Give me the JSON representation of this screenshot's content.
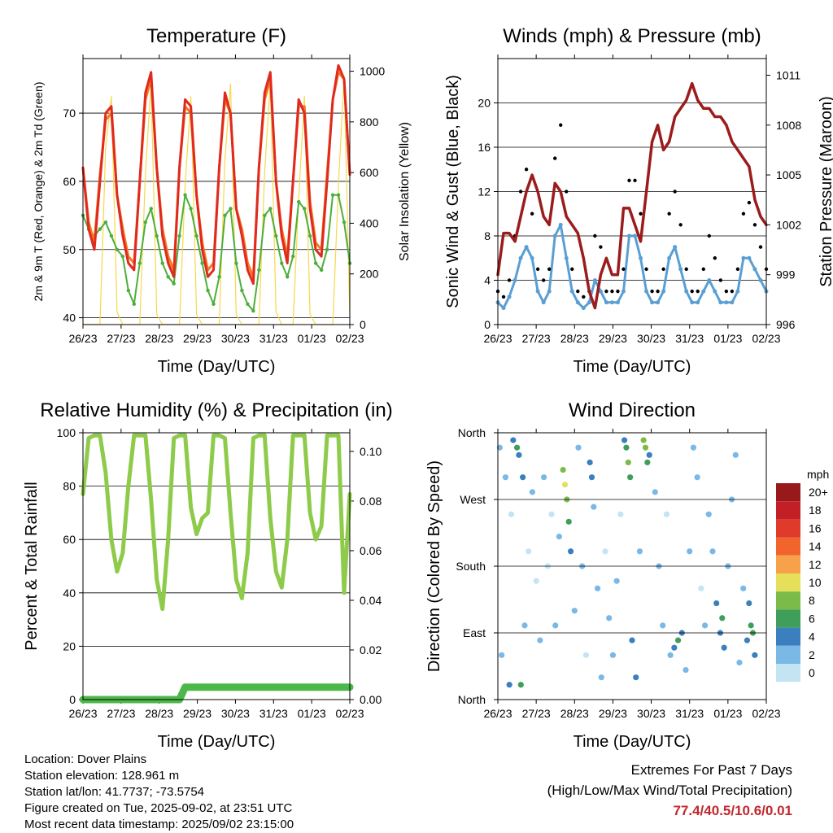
{
  "chart_data": [
    {
      "type": "line",
      "title": "Temperature (F)",
      "xlabel": "Time (Day/UTC)",
      "ylabel": "2m & 9m T (Red, Orange) & 2m Td (Green)",
      "y2label": "Solar Insolation (Yellow)",
      "x_ticks": [
        "26/23",
        "27/23",
        "28/23",
        "29/23",
        "30/23",
        "31/23",
        "01/23",
        "02/23"
      ],
      "ylim": [
        39,
        78
      ],
      "y_ticks": [
        40,
        50,
        60,
        70
      ],
      "y2lim": [
        0,
        1050
      ],
      "y2_ticks": [
        0,
        200,
        400,
        600,
        800,
        1000
      ],
      "series": [
        {
          "color": "#e02a1f",
          "values": [
            62,
            53,
            50,
            60,
            70,
            71,
            58,
            52,
            48,
            47,
            60,
            73,
            76,
            62,
            52,
            48,
            46,
            62,
            72,
            71,
            58,
            50,
            46,
            47,
            62,
            73,
            70,
            56,
            52,
            47,
            45,
            62,
            73,
            76,
            60,
            52,
            48,
            60,
            72,
            70,
            56,
            50,
            49,
            60,
            72,
            77,
            75,
            61
          ]
        },
        {
          "color": "#f47a20",
          "values": [
            62,
            54,
            51,
            61,
            69,
            70,
            58,
            53,
            49,
            48,
            60,
            72,
            75,
            62,
            53,
            49,
            47,
            62,
            71,
            70,
            58,
            51,
            47,
            48,
            62,
            72,
            70,
            56,
            53,
            48,
            46,
            62,
            72,
            75,
            60,
            53,
            49,
            60,
            71,
            71,
            57,
            51,
            50,
            61,
            72,
            76,
            75,
            61
          ]
        },
        {
          "color": "#4caf3a",
          "values": [
            55,
            53,
            52,
            53,
            54,
            52,
            50,
            49,
            44,
            42,
            48,
            54,
            56,
            52,
            48,
            46,
            45,
            52,
            58,
            56,
            52,
            48,
            44,
            42,
            46,
            55,
            56,
            48,
            44,
            42,
            41,
            47,
            55,
            56,
            52,
            48,
            46,
            49,
            57,
            56,
            52,
            48,
            47,
            50,
            58,
            58,
            54,
            48
          ]
        },
        {
          "color": "#f5d94a",
          "values": [
            0,
            0,
            0,
            0,
            700,
            900,
            50,
            0,
            0,
            0,
            0,
            600,
            950,
            40,
            0,
            0,
            0,
            0,
            550,
            900,
            40,
            0,
            0,
            0,
            0,
            650,
            950,
            40,
            0,
            0,
            0,
            0,
            600,
            960,
            50,
            0,
            0,
            0,
            500,
            900,
            40,
            0,
            0,
            0,
            0,
            550,
            980,
            30
          ]
        }
      ]
    },
    {
      "type": "scatter",
      "title": "Winds (mph) & Pressure (mb)",
      "xlabel": "Time (Day/UTC)",
      "ylabel": "Sonic Wind & Gust (Blue, Black)",
      "y2label": "Station Pressure (Maroon)",
      "x_ticks": [
        "26/23",
        "27/23",
        "28/23",
        "29/23",
        "30/23",
        "31/23",
        "01/23",
        "02/23"
      ],
      "ylim": [
        0,
        24
      ],
      "y_ticks": [
        0,
        4,
        8,
        12,
        16,
        20
      ],
      "y2lim": [
        996,
        1012
      ],
      "y2_ticks": [
        996,
        999,
        1002,
        1005,
        1008,
        1011
      ],
      "series": [
        {
          "color": "#5a9fd4",
          "values": [
            2,
            1.5,
            2.5,
            4,
            6,
            7,
            6,
            3,
            2,
            3,
            8,
            9,
            6,
            3,
            2,
            1.5,
            2,
            4,
            3,
            2,
            2,
            2,
            3,
            8,
            8,
            6,
            3,
            2,
            2,
            3,
            6,
            7,
            5,
            3,
            2,
            2,
            3,
            4,
            3,
            2,
            2,
            2,
            3,
            6,
            6,
            5,
            4,
            3
          ]
        },
        {
          "color": "#000000",
          "values": [
            3,
            2.5,
            4,
            8,
            12,
            14,
            10,
            5,
            4,
            5,
            15,
            18,
            12,
            5,
            3,
            2.5,
            3,
            8,
            7,
            3,
            3,
            3,
            5,
            13,
            13,
            10,
            5,
            3,
            3,
            5,
            10,
            12,
            9,
            5,
            3,
            3,
            5,
            8,
            6,
            4,
            3,
            3,
            5,
            10,
            11,
            9,
            7,
            5
          ]
        },
        {
          "color": "#9b1c1c",
          "values": [
            999,
            1001.5,
            1001.5,
            1001,
            1002.5,
            1004,
            1005,
            1004,
            1002.5,
            1002,
            1004.5,
            1004,
            1002.5,
            1002,
            1001.5,
            1000,
            998,
            997,
            999,
            1000,
            999,
            999,
            1003,
            1003,
            1002,
            1001,
            1004,
            1007,
            1008,
            1006.5,
            1007,
            1008.5,
            1009,
            1009.5,
            1010.5,
            1009.5,
            1009,
            1009,
            1008.5,
            1008.5,
            1008,
            1007,
            1006.5,
            1006,
            1005.5,
            1003.5,
            1002.5,
            1002
          ]
        }
      ]
    },
    {
      "type": "line",
      "title": "Relative Humidity (%) & Precipitation (in)",
      "xlabel": "Time (Day/UTC)",
      "ylabel": "Percent & Total Rainfall",
      "x_ticks": [
        "26/23",
        "27/23",
        "28/23",
        "29/23",
        "30/23",
        "31/23",
        "01/23",
        "02/23"
      ],
      "ylim": [
        0,
        100
      ],
      "y_ticks": [
        0,
        20,
        40,
        60,
        80,
        100
      ],
      "y2lim": [
        0,
        0.1075
      ],
      "y2_ticks": [
        "0.00",
        "0.02",
        "0.04",
        "0.06",
        "0.08",
        "0.10"
      ],
      "series": [
        {
          "color": "#8ecb4a",
          "values": [
            77,
            98,
            99,
            99,
            85,
            60,
            48,
            55,
            80,
            99,
            99,
            99,
            75,
            45,
            34,
            60,
            98,
            99,
            99,
            72,
            62,
            68,
            70,
            99,
            99,
            98,
            70,
            45,
            38,
            55,
            98,
            99,
            99,
            68,
            48,
            42,
            60,
            99,
            99,
            99,
            70,
            60,
            65,
            99,
            99,
            99,
            40,
            77
          ]
        },
        {
          "color": "#4cb84a",
          "values": [
            0,
            0,
            0,
            0,
            0,
            0,
            0,
            0,
            0,
            0,
            0,
            0,
            0,
            0,
            0,
            0,
            0,
            0,
            0.005,
            0.005,
            0.005,
            0.005,
            0.005,
            0.005,
            0.005,
            0.005,
            0.005,
            0.005,
            0.005,
            0.005,
            0.005,
            0.005,
            0.005,
            0.005,
            0.005,
            0.005,
            0.005,
            0.005,
            0.005,
            0.005,
            0.005,
            0.005,
            0.005,
            0.005,
            0.005,
            0.005,
            0.005,
            0.005
          ]
        }
      ]
    },
    {
      "type": "scatter",
      "title": "Wind Direction",
      "xlabel": "Time (Day/UTC)",
      "ylabel": "Direction (Colored By Speed)",
      "x_ticks": [
        "26/23",
        "27/23",
        "28/23",
        "29/23",
        "30/23",
        "31/23",
        "01/23",
        "02/23"
      ],
      "y_ticks": [
        "North",
        "East",
        "South",
        "West",
        "North"
      ],
      "ylim": [
        0,
        360
      ],
      "colorbar": {
        "title": "mph",
        "labels": [
          "20+",
          "18",
          "16",
          "14",
          "12",
          "10",
          "8",
          "6",
          "4",
          "2",
          "0"
        ],
        "colors": [
          "#98191a",
          "#c21f26",
          "#e03a2a",
          "#f1652c",
          "#f7a24a",
          "#e6df5a",
          "#7bbb4a",
          "#3f9f5a",
          "#3b7fbf",
          "#7ab8e6",
          "#c4e4f4"
        ]
      },
      "series": [
        {
          "values": [
            [
              0.05,
              340,
              2
            ],
            [
              0.1,
              60,
              3
            ],
            [
              0.2,
              300,
              2
            ],
            [
              0.3,
              20,
              4
            ],
            [
              0.35,
              250,
              1
            ],
            [
              0.4,
              350,
              5
            ],
            [
              0.5,
              340,
              6
            ],
            [
              0.55,
              330,
              5
            ],
            [
              0.6,
              20,
              7
            ],
            [
              0.65,
              300,
              4
            ],
            [
              0.7,
              100,
              2
            ],
            [
              0.8,
              200,
              1
            ],
            [
              0.9,
              280,
              2
            ],
            [
              1.0,
              160,
              1
            ],
            [
              1.1,
              80,
              3
            ],
            [
              1.2,
              300,
              2
            ],
            [
              1.3,
              180,
              1
            ],
            [
              1.4,
              250,
              1
            ],
            [
              1.5,
              100,
              2
            ],
            [
              1.6,
              220,
              2
            ],
            [
              1.7,
              310,
              8
            ],
            [
              1.75,
              290,
              10
            ],
            [
              1.8,
              270,
              8
            ],
            [
              1.85,
              240,
              6
            ],
            [
              1.9,
              200,
              4
            ],
            [
              2.0,
              120,
              2
            ],
            [
              2.1,
              340,
              3
            ],
            [
              2.2,
              180,
              2
            ],
            [
              2.3,
              60,
              1
            ],
            [
              2.4,
              320,
              5
            ],
            [
              2.45,
              300,
              4
            ],
            [
              2.5,
              260,
              3
            ],
            [
              2.6,
              150,
              2
            ],
            [
              2.7,
              30,
              3
            ],
            [
              2.8,
              200,
              1
            ],
            [
              2.9,
              110,
              2
            ],
            [
              3.0,
              60,
              3
            ],
            [
              3.1,
              160,
              2
            ],
            [
              3.2,
              250,
              1
            ],
            [
              3.3,
              350,
              5
            ],
            [
              3.35,
              340,
              6
            ],
            [
              3.4,
              320,
              8
            ],
            [
              3.45,
              300,
              7
            ],
            [
              3.5,
              80,
              4
            ],
            [
              3.6,
              30,
              4
            ],
            [
              3.7,
              200,
              2
            ],
            [
              3.8,
              350,
              9
            ],
            [
              3.85,
              340,
              8
            ],
            [
              3.9,
              320,
              6
            ],
            [
              3.95,
              330,
              5
            ],
            [
              4.1,
              280,
              2
            ],
            [
              4.2,
              180,
              2
            ],
            [
              4.3,
              100,
              3
            ],
            [
              4.4,
              250,
              1
            ],
            [
              4.5,
              60,
              3
            ],
            [
              4.6,
              70,
              5
            ],
            [
              4.7,
              80,
              6
            ],
            [
              4.8,
              90,
              4
            ],
            [
              4.9,
              40,
              3
            ],
            [
              5.0,
              200,
              2
            ],
            [
              5.1,
              340,
              2
            ],
            [
              5.2,
              300,
              3
            ],
            [
              5.3,
              150,
              1
            ],
            [
              5.4,
              100,
              2
            ],
            [
              5.5,
              250,
              2
            ],
            [
              5.6,
              200,
              3
            ],
            [
              5.7,
              130,
              4
            ],
            [
              5.8,
              90,
              4
            ],
            [
              5.85,
              110,
              6
            ],
            [
              5.9,
              70,
              5
            ],
            [
              6.0,
              180,
              2
            ],
            [
              6.1,
              270,
              2
            ],
            [
              6.2,
              330,
              2
            ],
            [
              6.3,
              50,
              3
            ],
            [
              6.4,
              150,
              3
            ],
            [
              6.5,
              80,
              4
            ],
            [
              6.55,
              130,
              5
            ],
            [
              6.6,
              100,
              6
            ],
            [
              6.65,
              90,
              7
            ],
            [
              6.7,
              60,
              4
            ]
          ]
        }
      ]
    }
  ],
  "info": {
    "location": "Location: Dover Plains",
    "elevation": "Station elevation: 128.961 m",
    "latlon": "Station lat/lon: 41.7737; -73.5754",
    "created": "Figure created on Tue, 2025-09-02, at 23:51 UTC",
    "recent": "Most recent data timestamp: 2025/09/02 23:15:00"
  },
  "extremes": {
    "title": "Extremes For Past 7 Days",
    "subtitle": "(High/Low/Max Wind/Total Precipitation)",
    "values": "77.4/40.5/10.6/0.01"
  }
}
